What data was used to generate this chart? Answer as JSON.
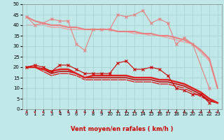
{
  "xlabel": "Vent moyen/en rafales ( km/h )",
  "background_color": "#c0e8e8",
  "grid_color": "#a8d4d4",
  "xlim": [
    -0.5,
    23.5
  ],
  "ylim": [
    0,
    50
  ],
  "yticks": [
    0,
    5,
    10,
    15,
    20,
    25,
    30,
    35,
    40,
    45,
    50
  ],
  "xticks": [
    0,
    1,
    2,
    3,
    4,
    5,
    6,
    7,
    8,
    9,
    10,
    11,
    12,
    13,
    14,
    15,
    16,
    17,
    18,
    19,
    20,
    21,
    22,
    23
  ],
  "series": [
    {
      "x": [
        0,
        1,
        2,
        3,
        4,
        5,
        6,
        7,
        8,
        9,
        10,
        11,
        12,
        13,
        14,
        15,
        16,
        17,
        18,
        19,
        20,
        22
      ],
      "y": [
        44,
        40,
        41,
        43,
        42,
        42,
        31,
        28,
        38,
        38,
        38,
        45,
        44,
        45,
        47,
        41,
        43,
        41,
        31,
        34,
        31,
        10
      ],
      "color": "#e88080",
      "linewidth": 0.8,
      "marker": "x",
      "markersize": 3,
      "zorder": 3
    },
    {
      "x": [
        0,
        1,
        2,
        3,
        4,
        5,
        6,
        7,
        8,
        9,
        10,
        11,
        12,
        13,
        14,
        15,
        16,
        17,
        18,
        19,
        20,
        21,
        22,
        23
      ],
      "y": [
        44,
        42,
        41,
        40,
        40,
        39,
        39,
        38,
        38,
        38,
        38,
        37,
        37,
        37,
        36,
        36,
        35,
        35,
        34,
        33,
        31,
        28,
        24,
        10
      ],
      "color": "#e88080",
      "linewidth": 1.5,
      "marker": null,
      "markersize": 0,
      "zorder": 2
    },
    {
      "x": [
        0,
        1,
        2,
        3,
        4,
        5,
        6,
        7,
        8,
        9,
        10,
        11,
        12,
        13,
        14,
        15,
        16,
        17,
        18,
        19,
        20,
        21,
        22,
        23
      ],
      "y": [
        40,
        40,
        40,
        39,
        39,
        38,
        38,
        38,
        38,
        38,
        38,
        37,
        37,
        36,
        36,
        35,
        35,
        34,
        33,
        32,
        31,
        27,
        23,
        10
      ],
      "color": "#f0a0a0",
      "linewidth": 1.0,
      "marker": null,
      "markersize": 0,
      "zorder": 1
    },
    {
      "x": [
        0,
        1,
        2,
        3,
        4,
        5,
        6,
        7,
        8,
        9,
        10,
        11,
        12,
        13,
        14,
        15,
        16,
        17,
        18,
        19,
        20,
        21,
        22
      ],
      "y": [
        20,
        21,
        20,
        18,
        21,
        21,
        19,
        17,
        17,
        17,
        17,
        22,
        23,
        19,
        19,
        20,
        19,
        16,
        10,
        9,
        7,
        7,
        3
      ],
      "color": "#cc0000",
      "linewidth": 0.8,
      "marker": "x",
      "markersize": 3,
      "zorder": 4
    },
    {
      "x": [
        0,
        1,
        2,
        3,
        4,
        5,
        6,
        7,
        8,
        9,
        10,
        11,
        12,
        13,
        14,
        15,
        16,
        17,
        18,
        19,
        20,
        21,
        22,
        23
      ],
      "y": [
        20,
        20,
        19,
        18,
        19,
        19,
        17,
        15,
        16,
        16,
        16,
        16,
        16,
        15,
        15,
        15,
        14,
        14,
        13,
        12,
        10,
        8,
        5,
        3
      ],
      "color": "#dd2020",
      "linewidth": 1.8,
      "marker": null,
      "markersize": 0,
      "zorder": 3
    },
    {
      "x": [
        0,
        1,
        2,
        3,
        4,
        5,
        6,
        7,
        8,
        9,
        10,
        11,
        12,
        13,
        14,
        15,
        16,
        17,
        18,
        19,
        20,
        21,
        22,
        23
      ],
      "y": [
        20,
        20,
        19,
        17,
        18,
        18,
        17,
        15,
        15,
        15,
        15,
        15,
        15,
        14,
        14,
        14,
        13,
        13,
        12,
        11,
        9,
        7,
        4,
        3
      ],
      "color": "#bb1010",
      "linewidth": 1.2,
      "marker": null,
      "markersize": 0,
      "zorder": 2
    },
    {
      "x": [
        0,
        1,
        2,
        3,
        4,
        5,
        6,
        7,
        8,
        9,
        10,
        11,
        12,
        13,
        14,
        15,
        16,
        17,
        18,
        19,
        20,
        21,
        22,
        23
      ],
      "y": [
        20,
        20,
        18,
        16,
        17,
        17,
        16,
        14,
        14,
        14,
        14,
        14,
        14,
        13,
        13,
        13,
        12,
        12,
        11,
        10,
        8,
        6,
        4,
        3
      ],
      "color": "#dd2020",
      "linewidth": 1.0,
      "marker": null,
      "markersize": 0,
      "zorder": 1
    }
  ],
  "arrow_color": "#cc2222",
  "xlabel_color": "#cc0000",
  "xlabel_fontsize": 6.0,
  "tick_fontsize": 5.0
}
